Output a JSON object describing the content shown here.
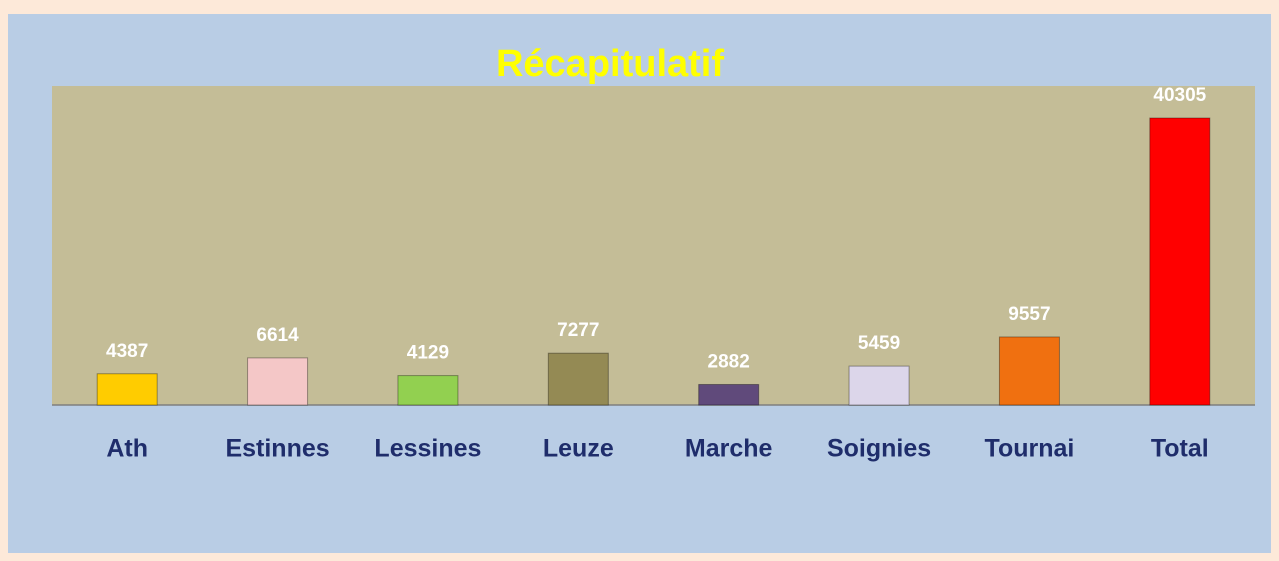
{
  "chart_data": {
    "type": "bar",
    "title": "Récapitulatif",
    "categories": [
      "Ath",
      "Estinnes",
      "Lessines",
      "Leuze",
      "Marche",
      "Soignies",
      "Tournai",
      "Total"
    ],
    "values": [
      4387,
      6614,
      4129,
      7277,
      2882,
      5459,
      9557,
      40305
    ],
    "colors": [
      "#ffcc00",
      "#f4c7c7",
      "#92d050",
      "#948a54",
      "#604a7b",
      "#dcd6ea",
      "#f07010",
      "#ff0000"
    ]
  }
}
